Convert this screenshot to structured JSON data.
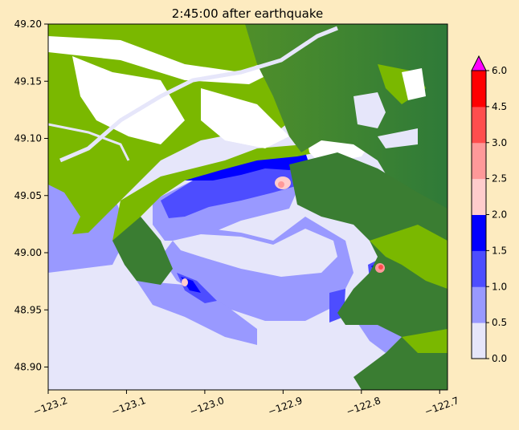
{
  "chart_data": {
    "type": "heatmap",
    "title": "2:45:00 after earthquake",
    "xlabel": "",
    "ylabel": "",
    "xlim": [
      -123.2,
      -122.69
    ],
    "ylim": [
      48.88,
      49.2
    ],
    "xticks": [
      {
        "value": -123.2,
        "label": "−123.2"
      },
      {
        "value": -123.1,
        "label": "−123.1"
      },
      {
        "value": -123.0,
        "label": "−123.0"
      },
      {
        "value": -122.9,
        "label": "−122.9"
      },
      {
        "value": -122.8,
        "label": "−122.8"
      },
      {
        "value": -122.7,
        "label": "−122.7"
      }
    ],
    "yticks": [
      {
        "value": 48.9,
        "label": "48.90"
      },
      {
        "value": 48.95,
        "label": "48.95"
      },
      {
        "value": 49.0,
        "label": "49.00"
      },
      {
        "value": 49.05,
        "label": "49.05"
      },
      {
        "value": 49.1,
        "label": "49.10"
      },
      {
        "value": 49.15,
        "label": "49.15"
      },
      {
        "value": 49.2,
        "label": "49.20"
      }
    ],
    "colorbar": {
      "bounds": [
        0.0,
        0.5,
        1.0,
        1.5,
        2.0,
        2.5,
        3.0,
        4.5,
        6.0
      ],
      "labels": [
        "0.0",
        "0.5",
        "1.0",
        "1.5",
        "2.0",
        "2.5",
        "3.0",
        "4.5",
        "6.0"
      ],
      "colors": [
        "#e6e6fa",
        "#9999ff",
        "#4d4dff",
        "#0000ff",
        "#ffcccc",
        "#ff9999",
        "#ff4d4d",
        "#ff0000"
      ],
      "extend_max_color": "#ff00ff"
    },
    "land_colors": {
      "lowland": "#7ab800",
      "upland": "#3a7d32",
      "dry_urban": "#ffffff"
    }
  }
}
